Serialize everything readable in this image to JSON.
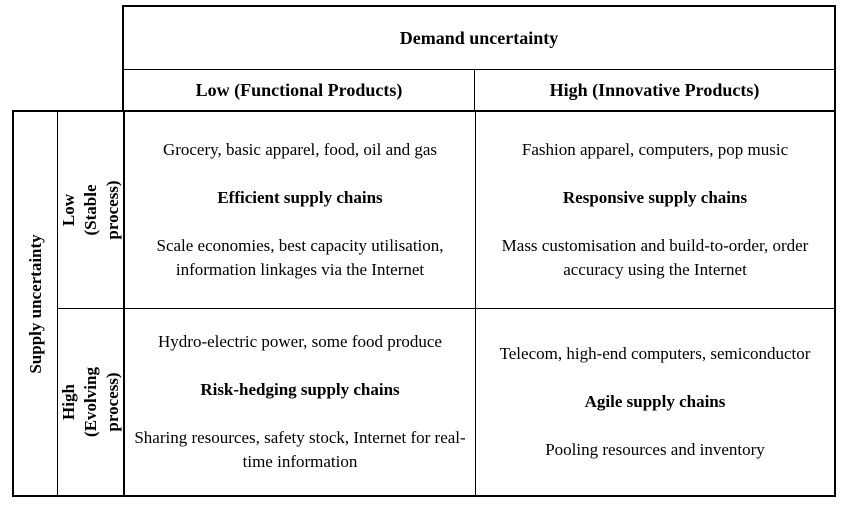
{
  "page": {
    "background": "#ffffff",
    "line_color": "#000000",
    "text_color": "#000000"
  },
  "matrix": {
    "demand_axis": {
      "title": "Demand uncertainty",
      "low_label": "Low (Functional Products)",
      "high_label": "High (Innovative Products)"
    },
    "supply_axis": {
      "title": "Supply uncertainty",
      "low_label": "Low (Stable\nprocess)",
      "high_label": "High (Evolving\nprocess)"
    },
    "cells": {
      "low_supply_low_demand": {
        "examples": "Grocery, basic apparel, food, oil and gas",
        "strategy": "Efficient supply chains",
        "practices": "Scale economies, best capacity utilisation, information linkages via the Internet"
      },
      "low_supply_high_demand": {
        "examples": "Fashion apparel, computers, pop music",
        "strategy": "Responsive supply chains",
        "practices": "Mass customisation and build-to-order, order accuracy using the Internet"
      },
      "high_supply_low_demand": {
        "examples": "Hydro-electric power, some food produce",
        "strategy": "Risk-hedging supply chains",
        "practices": "Sharing resources, safety stock, Internet for real-time information"
      },
      "high_supply_high_demand": {
        "examples": "Telecom, high-end computers, semiconductor",
        "strategy": "Agile supply chains",
        "practices": "Pooling resources and inventory"
      }
    }
  }
}
